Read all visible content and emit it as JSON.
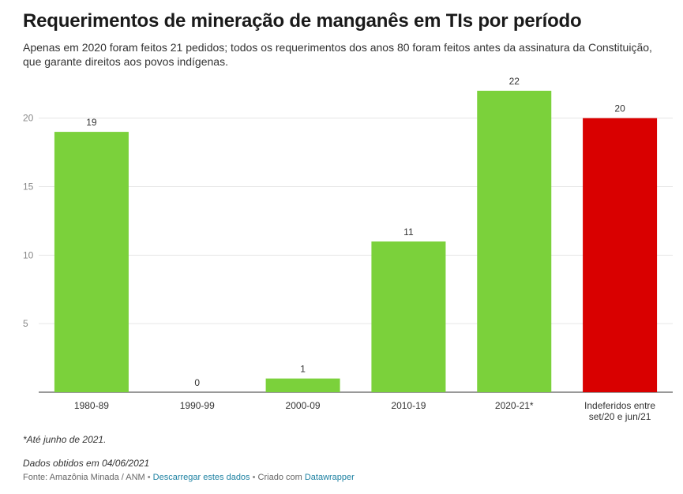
{
  "title": "Requerimentos de mineração de manganês em TIs por período",
  "subtitle": "Apenas em 2020 foram feitos 21 pedidos; todos os requerimentos dos anos 80 foram feitos antes da assinatura da Constituição, que garante direitos aos povos indígenas.",
  "chart_data": {
    "type": "bar",
    "categories": [
      "1980-89",
      "1990-99",
      "2000-09",
      "2010-19",
      "2020-21*",
      "Indeferidos entre set/20 e jun/21"
    ],
    "category_lines": [
      [
        "1980-89"
      ],
      [
        "1990-99"
      ],
      [
        "2000-09"
      ],
      [
        "2010-19"
      ],
      [
        "2020-21*"
      ],
      [
        "Indeferidos entre",
        "set/20 e jun/21"
      ]
    ],
    "values": [
      19,
      0,
      1,
      11,
      22,
      20
    ],
    "value_labels": [
      "19",
      "0",
      "1",
      "11",
      "22",
      "20"
    ],
    "colors": [
      "#7bd13b",
      "#7bd13b",
      "#7bd13b",
      "#7bd13b",
      "#7bd13b",
      "#d90000"
    ],
    "yticks": [
      5,
      10,
      15,
      20
    ],
    "ytick_labels": [
      "5",
      "10",
      "15",
      "20"
    ],
    "ylim": [
      0,
      22
    ],
    "grid": true,
    "xlabel": "",
    "ylabel": ""
  },
  "footer": {
    "note": "*Até junho de 2021.",
    "date": "Dados obtidos em 04/06/2021",
    "source": "Fonte: Amazônia Minada / ANM",
    "separator": " • ",
    "download_link": "Descarregar estes dados",
    "created_with": "Criado com ",
    "tool_link": "Datawrapper"
  }
}
